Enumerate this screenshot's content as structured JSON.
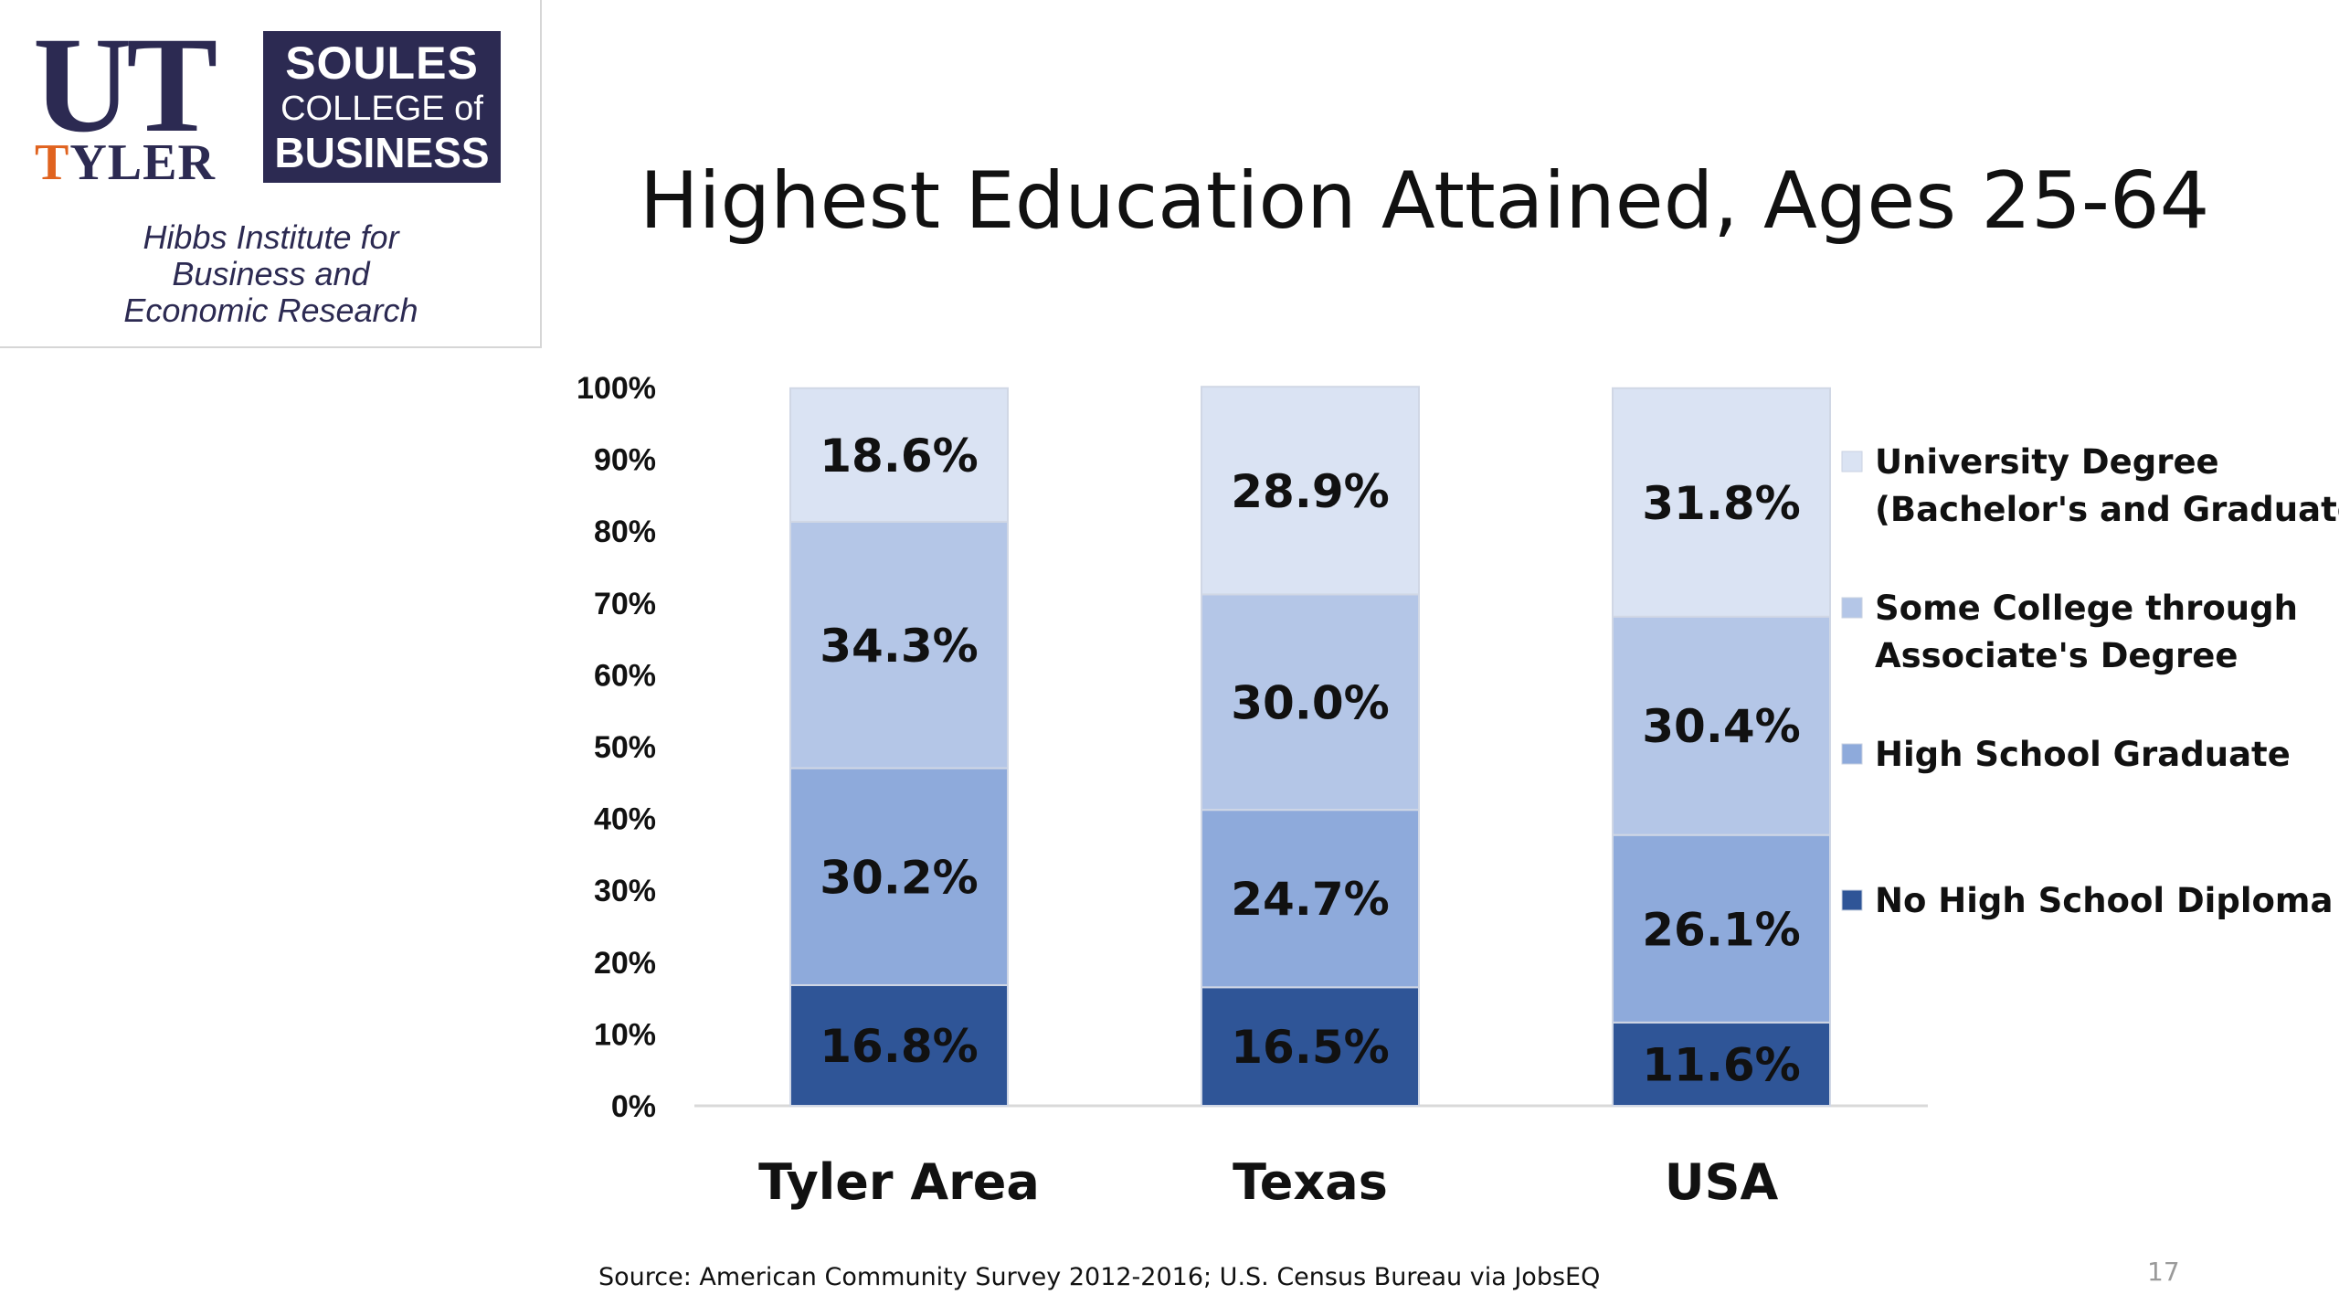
{
  "logo": {
    "ut": "UT",
    "tyler_first": "T",
    "tyler_rest": "YLER",
    "college_line1": "SOULES",
    "college_line2": "COLLEGE of",
    "college_line3": "BUSINESS",
    "institute_line1": "Hibbs Institute for",
    "institute_line2": "Business and",
    "institute_line3": "Economic Research"
  },
  "slide": {
    "source": "Source: American Community Survey 2012-2016; U.S. Census Bureau via JobsEQ",
    "page_number": "17"
  },
  "chart_data": {
    "type": "bar",
    "stacked": true,
    "title": "Highest Education Attained, Ages 25-64",
    "categories": [
      "Tyler Area",
      "Texas",
      "USA"
    ],
    "series": [
      {
        "name": "No High School Diploma",
        "values": [
          16.8,
          16.5,
          11.6
        ],
        "labels": [
          "16.8%",
          "16.5%",
          "11.6%"
        ],
        "color": "#2f5597"
      },
      {
        "name": "High School Graduate",
        "values": [
          30.2,
          24.7,
          26.1
        ],
        "labels": [
          "30.2%",
          "24.7%",
          "26.1%"
        ],
        "color": "#8eaadb"
      },
      {
        "name": "Some College through Associate's Degree",
        "values": [
          34.3,
          30.0,
          30.4
        ],
        "labels": [
          "34.3%",
          "30.0%",
          "30.4%"
        ],
        "color": "#b4c6e7"
      },
      {
        "name": "University Degree (Bachelor's and Graduate)",
        "values": [
          18.6,
          28.9,
          31.8
        ],
        "labels": [
          "18.6%",
          "28.9%",
          "31.8%"
        ],
        "color": "#dae3f3"
      }
    ],
    "legend": {
      "placement": "right",
      "entries": [
        {
          "lines": [
            "University Degree",
            "(Bachelor's and Graduate)"
          ],
          "color": "#dae3f3"
        },
        {
          "lines": [
            "Some College through",
            "Associate's Degree"
          ],
          "color": "#b4c6e7"
        },
        {
          "lines": [
            "High School Graduate"
          ],
          "color": "#8eaadb"
        },
        {
          "lines": [
            "No High School Diploma"
          ],
          "color": "#2f5597"
        }
      ]
    },
    "ylim": [
      0,
      100
    ],
    "yticks": [
      "0%",
      "10%",
      "20%",
      "30%",
      "40%",
      "50%",
      "60%",
      "70%",
      "80%",
      "90%",
      "100%"
    ],
    "grid": false
  }
}
